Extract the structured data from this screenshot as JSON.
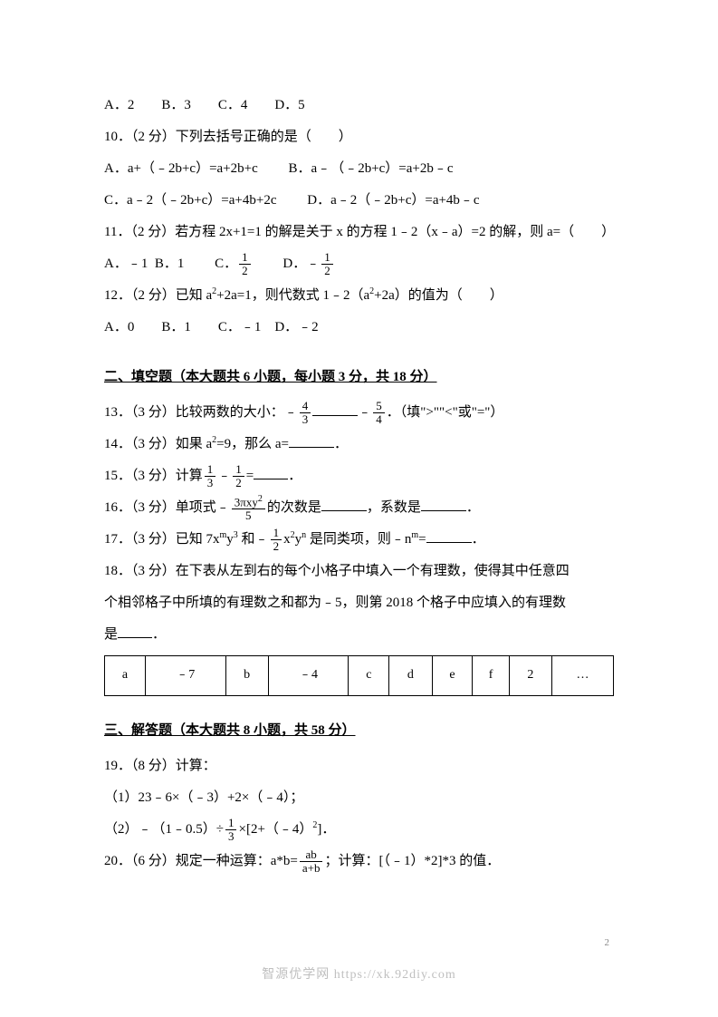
{
  "q9_options": "A．2　　B．3　　C．4　　D．5",
  "q10_stem": "10．（2 分）下列去括号正确的是（　　）",
  "q10_optA": "A．a+（﹣2b+c）=a+2b+c",
  "q10_optB": "B．a﹣（﹣2b+c）=a+2b﹣c",
  "q10_optC": "C．a﹣2（﹣2b+c）=a+4b+2c",
  "q10_optD": "D．a﹣2（﹣2b+c）=a+4b﹣c",
  "q11_stem": "11．（2 分）若方程 2x+1=1 的解是关于 x 的方程 1﹣2（x﹣a）=2 的解，则 a=（　　）",
  "q11_optA": "A．﹣1",
  "q11_optB": "B．1",
  "q11_optC_pre": "C．",
  "q11_optD_pre": "D．﹣",
  "q12_stem_pre": "12．（2 分）已知 a",
  "q12_stem_mid1": "+2a=1，则代数式 1﹣2（a",
  "q12_stem_mid2": "+2a）的值为（　　）",
  "q12_options": "A．0　　B．1　　C．﹣1　D．﹣2",
  "sec2_header": "二、填空题（本大题共 6 小题，每小题 3 分，共 18 分）",
  "q13_pre": "13．（3 分）比较两数的大小：﹣",
  "q13_mid": "﹣",
  "q13_post": "．（填\">\"\"<\"或\"=\"）",
  "q14_pre": "14．（3 分）如果 a",
  "q14_mid": "=9，那么 a=",
  "q14_post": "．",
  "q15_pre": "15．（3 分）计算",
  "q15_mid": "﹣",
  "q15_eq": "=",
  "q15_post": "．",
  "q16_pre": "16．（3 分）单项式﹣",
  "q16_frac_num": "3πxy",
  "q16_frac_den": "5",
  "q16_mid1": "的次数是",
  "q16_mid2": "，系数是",
  "q16_post": "．",
  "q17_pre": "17．（3 分）已知 7x",
  "q17_mid1": "y",
  "q17_mid2": " 和﹣",
  "q17_mid3": "x",
  "q17_mid4": "y",
  "q17_mid5": " 是同类项，则﹣n",
  "q17_eq": "=",
  "q17_post": "．",
  "q18_line1": "18．（3 分）在下表从左到右的每个小格子中填入一个有理数，使得其中任意四",
  "q18_line2": "个相邻格子中所填的有理数之和都为﹣5，则第 2018 个格子中应填入的有理数",
  "q18_line3_pre": "是",
  "q18_line3_post": "．",
  "table": {
    "cells": [
      "a",
      "﹣7",
      "b",
      "﹣4",
      "c",
      "d",
      "e",
      "f",
      "2",
      "…"
    ]
  },
  "sec3_header": "三、解答题（本大题共 8 小题，共 58 分）",
  "q19_stem": "19．（8 分）计算：",
  "q19_1": "（1）23﹣6×（﹣3）+2×（﹣4）；",
  "q19_2_pre": "（2）﹣（1﹣0.5）÷",
  "q19_2_mid": "×[2+（﹣4）",
  "q19_2_post": "]．",
  "q20_pre": "20．（6 分）规定一种运算：a*b=",
  "q20_frac_num": "ab",
  "q20_frac_den": "a+b",
  "q20_post": "；计算：[（﹣1）*2]*3 的值．",
  "fracs": {
    "half": {
      "num": "1",
      "den": "2"
    },
    "third": {
      "num": "1",
      "den": "3"
    },
    "four_thirds": {
      "num": "4",
      "den": "3"
    },
    "five_fourths": {
      "num": "5",
      "den": "4"
    }
  },
  "sup_m": "m",
  "sup_n": "n",
  "sup_2": "2",
  "sup_3": "3",
  "page_num": "2",
  "footer": "智源优学网 https://xk.92diy.com"
}
